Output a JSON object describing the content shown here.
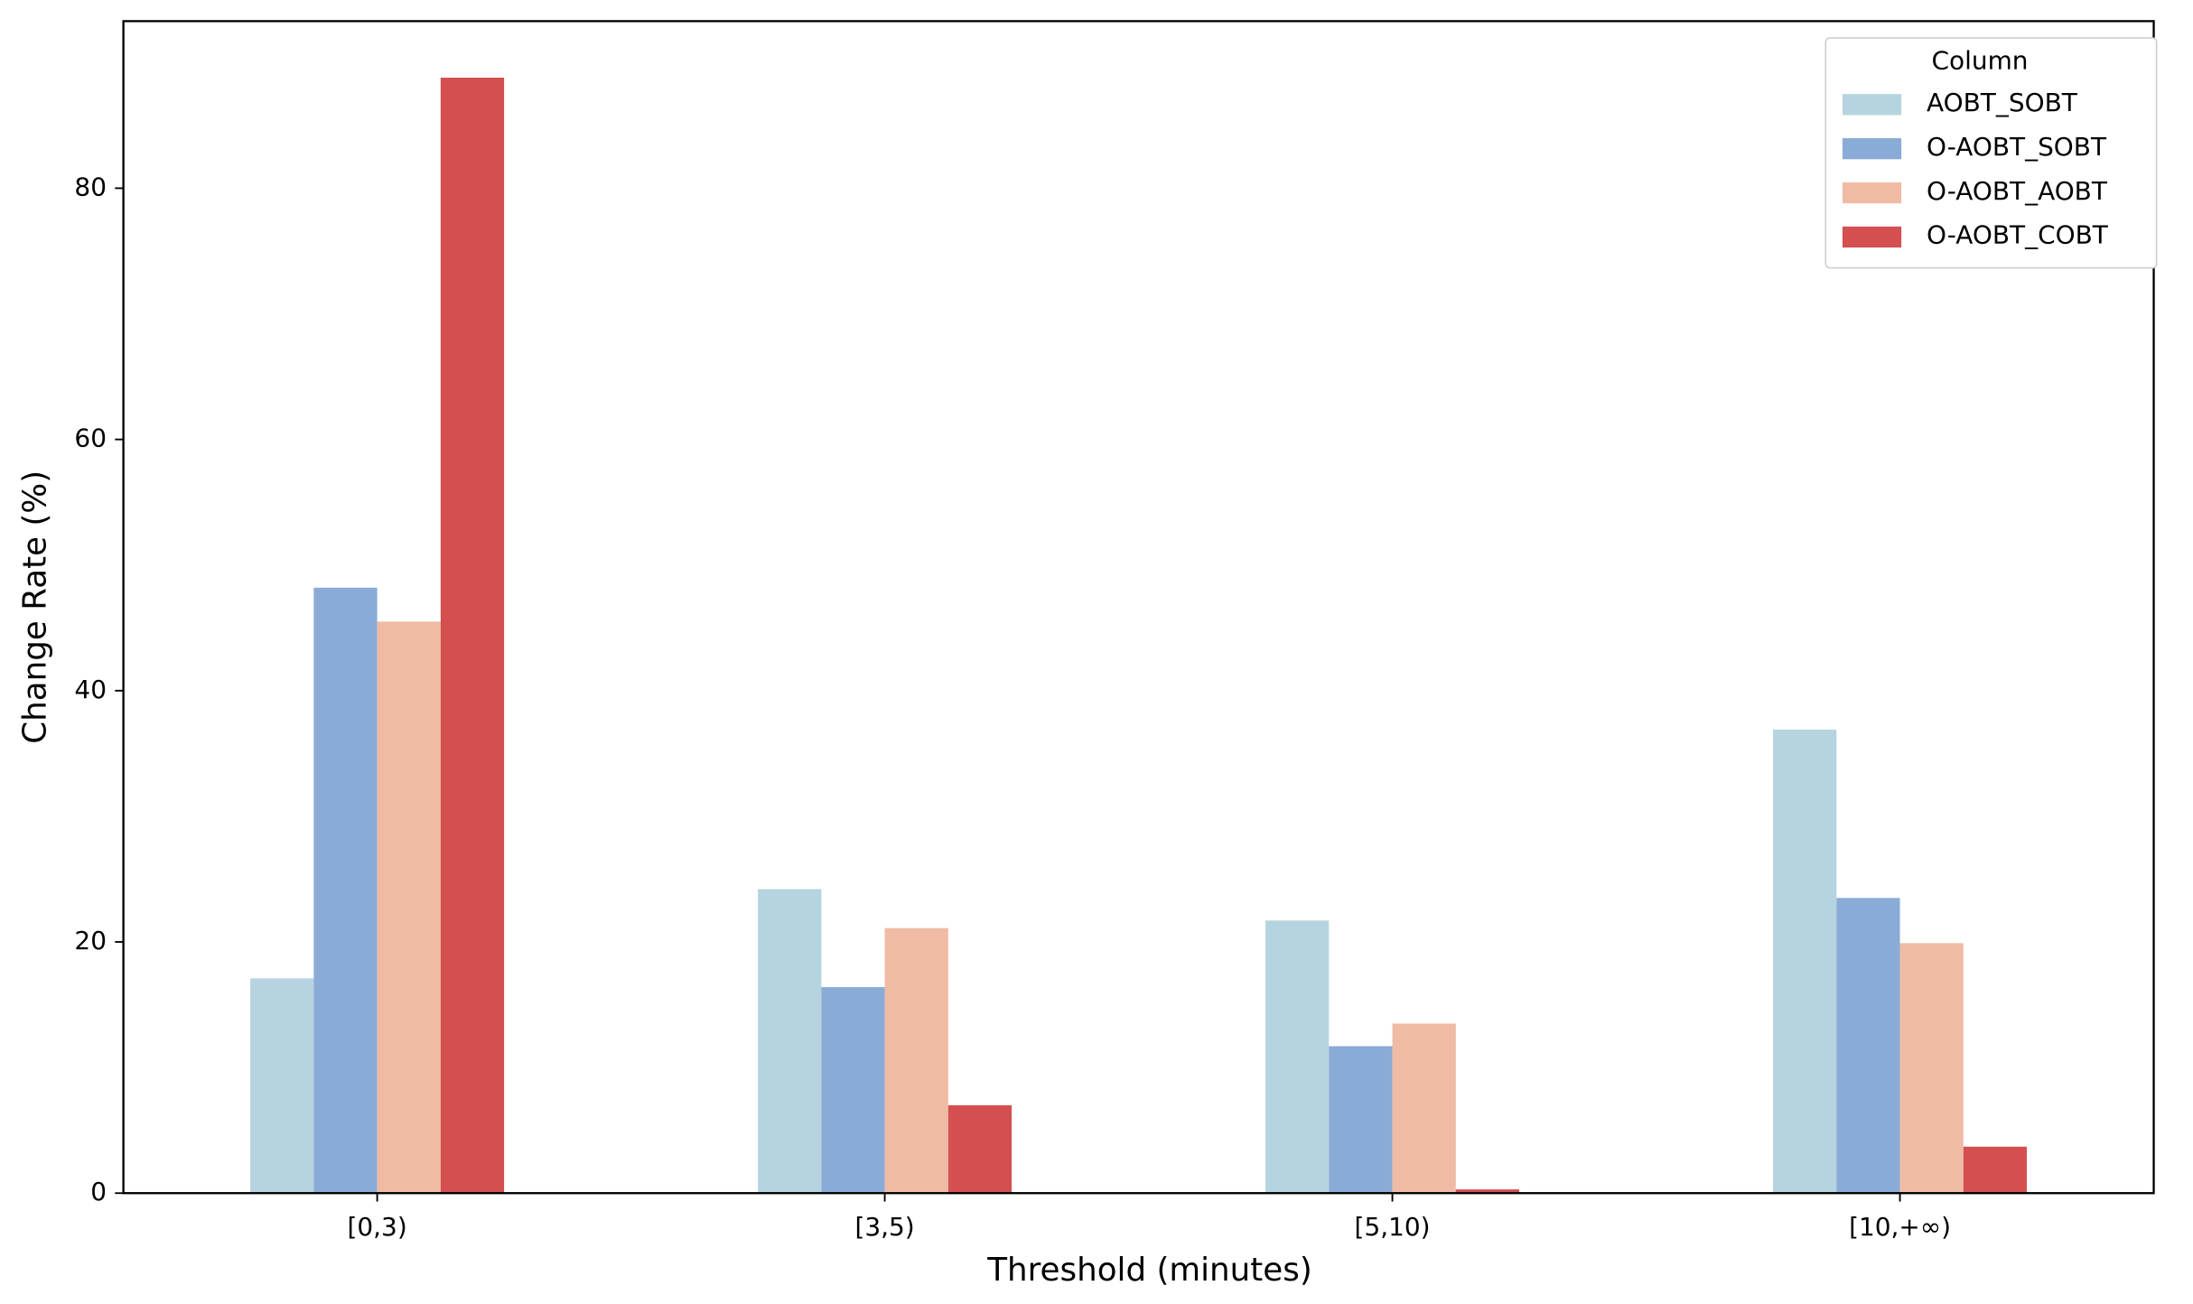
{
  "chart_data": {
    "type": "bar",
    "x_label": "Threshold (minutes)",
    "y_label": "Change Rate (%)",
    "categories": [
      "[0,3)",
      "[3,5)",
      "[5,10)",
      "[10,+∞)"
    ],
    "series": [
      {
        "name": "AOBT_SOBT",
        "color": "#b5d4e0",
        "values": [
          17.1,
          24.2,
          21.7,
          36.9
        ]
      },
      {
        "name": "O-AOBT_SOBT",
        "color": "#8aabd6",
        "values": [
          48.2,
          16.4,
          11.7,
          23.5
        ]
      },
      {
        "name": "O-AOBT_AOBT",
        "color": "#f0bba4",
        "values": [
          45.5,
          21.1,
          13.5,
          19.9
        ]
      },
      {
        "name": "O-AOBT_COBT",
        "color": "#d44f4f",
        "values": [
          88.8,
          7.0,
          0.3,
          3.7
        ]
      }
    ],
    "ylim": [
      0,
      93.3
    ],
    "yticks": [
      0,
      20,
      40,
      60,
      80
    ],
    "grid": false,
    "legend_title": "Column",
    "legend_position": "upper right"
  }
}
